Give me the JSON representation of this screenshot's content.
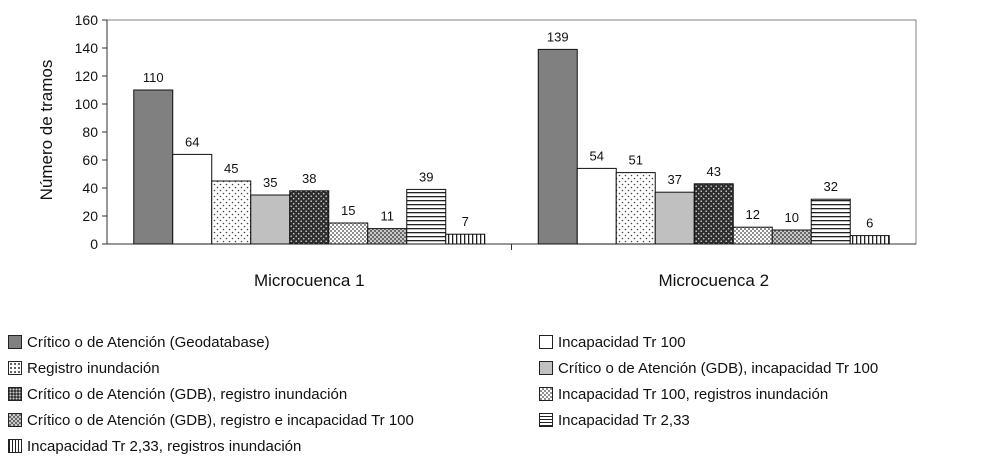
{
  "chart_data": {
    "type": "bar",
    "ylabel": "Número de tramos",
    "xlabel": "",
    "ylim": [
      0,
      160
    ],
    "yticks": [
      0,
      20,
      40,
      60,
      80,
      100,
      120,
      140,
      160
    ],
    "categories": [
      "Microcuenca 1",
      "Microcuenca 2"
    ],
    "legend_position": "bottom",
    "series": [
      {
        "name": "Crítico o de Atención (Geodatabase)",
        "values": [
          110,
          139
        ],
        "pattern": "solid-gray"
      },
      {
        "name": "Incapacidad Tr 100",
        "values": [
          64,
          54
        ],
        "pattern": "white"
      },
      {
        "name": "Registro inundación",
        "values": [
          45,
          51
        ],
        "pattern": "dots"
      },
      {
        "name": "Crítico o de Atención (GDB), incapacidad Tr 100",
        "values": [
          35,
          37
        ],
        "pattern": "light-gray"
      },
      {
        "name": "Crítico o de Atención (GDB), registro inundación",
        "values": [
          38,
          43
        ],
        "pattern": "dark-dots"
      },
      {
        "name": "Incapacidad Tr 100, registros inundación",
        "values": [
          15,
          12
        ],
        "pattern": "checker"
      },
      {
        "name": "Crítico o de Atención (GDB), registro e incapacidad Tr 100",
        "values": [
          11,
          10
        ],
        "pattern": "gray-checker"
      },
      {
        "name": "Incapacidad Tr 2,33",
        "values": [
          39,
          32
        ],
        "pattern": "hlines"
      },
      {
        "name": "Incapacidad Tr 2,33, registros inundación",
        "values": [
          7,
          6
        ],
        "pattern": "vlines"
      }
    ],
    "legend_order": [
      0,
      1,
      2,
      3,
      4,
      5,
      6,
      7,
      8
    ]
  },
  "colors": {
    "solid_gray": "#808080",
    "light_gray": "#c0c0c0",
    "dark": "#333333",
    "axis": "#808080"
  }
}
